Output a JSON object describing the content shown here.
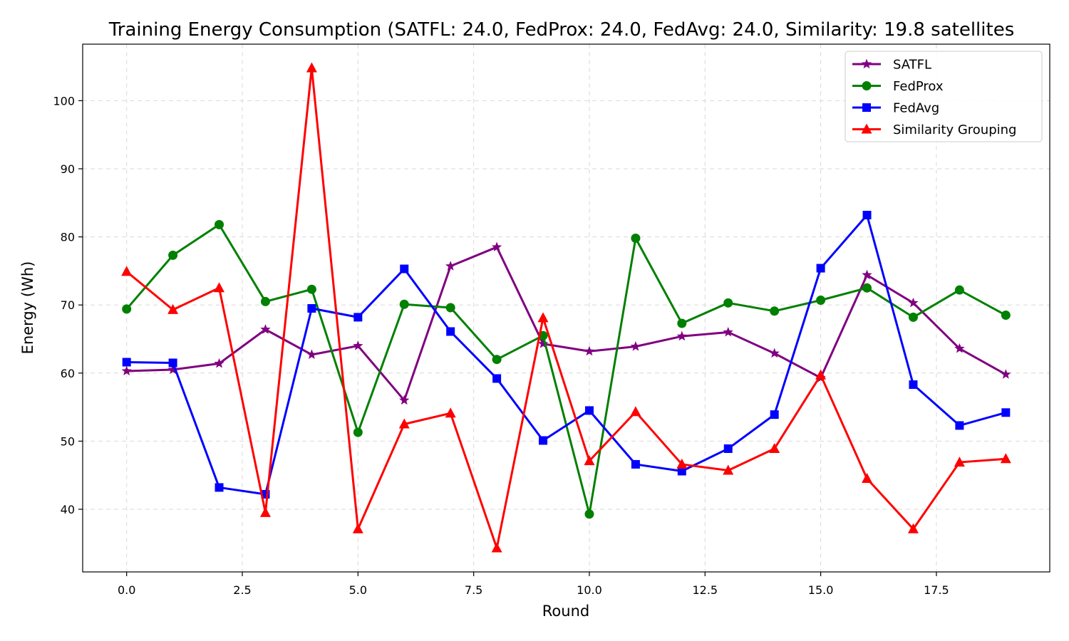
{
  "chart_data": {
    "type": "line",
    "title": "Training Energy Consumption (SATFL: 24.0, FedProx: 24.0, FedAvg: 24.0, Similarity: 19.8 satellites",
    "xlabel": "Round",
    "ylabel": "Energy (Wh)",
    "xlim": [
      -0.95,
      19.95
    ],
    "ylim": [
      30.8,
      108.3
    ],
    "x_ticks": [
      0.0,
      2.5,
      5.0,
      7.5,
      10.0,
      12.5,
      15.0,
      17.5
    ],
    "x_tick_labels": [
      "0.0",
      "2.5",
      "5.0",
      "7.5",
      "10.0",
      "12.5",
      "15.0",
      "17.5"
    ],
    "y_ticks": [
      40,
      50,
      60,
      70,
      80,
      90,
      100
    ],
    "y_tick_labels": [
      "40",
      "50",
      "60",
      "70",
      "80",
      "90",
      "100"
    ],
    "grid": true,
    "legend_position": "top-right",
    "x": [
      0,
      1,
      2,
      3,
      4,
      5,
      6,
      7,
      8,
      9,
      10,
      11,
      12,
      13,
      14,
      15,
      16,
      17,
      18,
      19
    ],
    "series": [
      {
        "name": "SATFL",
        "color": "#800080",
        "marker": "star",
        "values": [
          60.3,
          60.5,
          61.4,
          66.4,
          62.7,
          64.0,
          56.0,
          75.7,
          78.5,
          64.3,
          63.2,
          63.9,
          65.4,
          66.0,
          62.9,
          59.3,
          74.4,
          70.3,
          63.6,
          59.8
        ]
      },
      {
        "name": "FedProx",
        "color": "#008000",
        "marker": "circle",
        "values": [
          69.4,
          77.3,
          81.8,
          70.5,
          72.3,
          51.3,
          70.1,
          69.6,
          62.0,
          65.5,
          39.3,
          79.8,
          67.3,
          70.3,
          69.1,
          70.7,
          72.5,
          68.2,
          72.2,
          68.5
        ]
      },
      {
        "name": "FedAvg",
        "color": "#0000ff",
        "marker": "square",
        "values": [
          61.6,
          61.5,
          43.2,
          42.2,
          69.5,
          68.2,
          75.3,
          66.1,
          59.2,
          50.1,
          54.5,
          46.6,
          45.6,
          48.9,
          53.9,
          75.4,
          83.2,
          58.3,
          52.3,
          54.2
        ]
      },
      {
        "name": "Similarity Grouping",
        "color": "#ff0000",
        "marker": "triangle",
        "values": [
          74.9,
          69.3,
          72.5,
          39.5,
          104.8,
          37.1,
          52.5,
          54.1,
          34.3,
          68.1,
          47.1,
          54.3,
          46.6,
          45.7,
          48.9,
          59.7,
          44.5,
          37.1,
          46.9,
          47.4
        ]
      }
    ]
  }
}
